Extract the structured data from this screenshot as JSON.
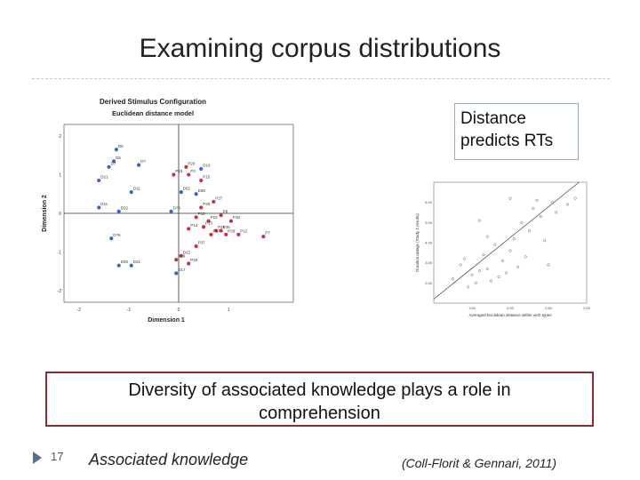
{
  "slide": {
    "title": "Examining corpus distributions",
    "callout_line1": "Distance",
    "callout_line2": "predicts RTs",
    "diversity_line1": "Diversity of associated knowledge plays a role in",
    "diversity_line2": "comprehension",
    "slide_number": "17",
    "bottom_label": "Associated knowledge",
    "citation": "(Coll-Florit & Gennari, 2011)",
    "marker_color": "#5a6f8c",
    "box_border_color": "#8b2d2d"
  },
  "chart_data": [
    {
      "type": "scatter",
      "title": "Derived Stimulus Configuration",
      "subtitle": "Euclidean distance model",
      "xlabel": "Dimension 1",
      "ylabel": "Dimension 2",
      "xlim": [
        -2.3,
        2.3
      ],
      "ylim": [
        -2.3,
        2.3
      ],
      "xticks": [
        -2,
        -1,
        0,
        1
      ],
      "yticks": [
        -2,
        -1,
        0,
        1,
        2
      ],
      "grid": false,
      "series": [
        {
          "color": "#3a63c9",
          "points": [
            {
              "x": -1.25,
              "y": 1.65,
              "label": "D6"
            },
            {
              "x": -1.3,
              "y": 1.35,
              "label": "D5"
            },
            {
              "x": -1.4,
              "y": 1.2,
              "label": "D7"
            },
            {
              "x": -0.8,
              "y": 1.25,
              "label": "D?"
            },
            {
              "x": -1.6,
              "y": 0.85,
              "label": "D21"
            },
            {
              "x": -0.95,
              "y": 0.55,
              "label": "D11"
            },
            {
              "x": -1.6,
              "y": 0.15,
              "label": "D11"
            },
            {
              "x": -1.2,
              "y": 0.05,
              "label": "D32"
            },
            {
              "x": -1.35,
              "y": -0.65,
              "label": "D?6"
            },
            {
              "x": -1.2,
              "y": -1.35,
              "label": "D35"
            },
            {
              "x": -0.95,
              "y": -1.35,
              "label": "D31"
            },
            {
              "x": -0.15,
              "y": 0.05,
              "label": "D?6"
            },
            {
              "x": 0.45,
              "y": 1.15,
              "label": "D18"
            },
            {
              "x": 0.05,
              "y": 0.55,
              "label": "D52"
            },
            {
              "x": 0.35,
              "y": 0.5,
              "label": "D55"
            },
            {
              "x": -0.05,
              "y": -1.55,
              "label": "D17"
            }
          ]
        },
        {
          "color": "#c8323a",
          "points": [
            {
              "x": 0.15,
              "y": 1.2,
              "label": "P20"
            },
            {
              "x": -0.1,
              "y": 1.0,
              "label": "P15"
            },
            {
              "x": 0.2,
              "y": 1.0,
              "label": "P3"
            },
            {
              "x": 0.45,
              "y": 0.85,
              "label": "P15"
            },
            {
              "x": 0.7,
              "y": 0.3,
              "label": "P27"
            },
            {
              "x": 0.45,
              "y": 0.15,
              "label": "P25"
            },
            {
              "x": 0.85,
              "y": -0.05,
              "label": "P8"
            },
            {
              "x": 0.35,
              "y": -0.1,
              "label": "P18"
            },
            {
              "x": 0.6,
              "y": -0.2,
              "label": "P22"
            },
            {
              "x": 1.05,
              "y": -0.2,
              "label": "P16"
            },
            {
              "x": 0.5,
              "y": -0.35,
              "label": "P13"
            },
            {
              "x": 0.75,
              "y": -0.45,
              "label": "P21"
            },
            {
              "x": 0.85,
              "y": -0.45,
              "label": "P35"
            },
            {
              "x": 0.65,
              "y": -0.55,
              "label": "P17"
            },
            {
              "x": 0.95,
              "y": -0.55,
              "label": "P33"
            },
            {
              "x": 0.2,
              "y": -0.4,
              "label": "P14"
            },
            {
              "x": 1.2,
              "y": -0.55,
              "label": "P12"
            },
            {
              "x": 1.7,
              "y": -0.6,
              "label": "P7"
            },
            {
              "x": 0.35,
              "y": -0.85,
              "label": "P37"
            },
            {
              "x": 0.05,
              "y": -1.1,
              "label": "D22"
            },
            {
              "x": -0.05,
              "y": -1.2,
              "label": "P29"
            },
            {
              "x": 0.2,
              "y": -1.3,
              "label": "P26"
            }
          ]
        }
      ]
    },
    {
      "type": "scatter",
      "xlabel": "Averaged Euclidean distance within verb types",
      "ylabel": "Duration ratings (Study 1 results)",
      "xlim": [
        1.0,
        3.0
      ],
      "ylim": [
        1.0,
        7.0
      ],
      "xticks": [
        "1.50",
        "2.00",
        "2.50",
        "3.00"
      ],
      "yticks": [
        "2.00",
        "3.00",
        "4.00",
        "5.00",
        "6.00"
      ],
      "grid": false,
      "fit_line": {
        "x1": 1.0,
        "y1": 1.2,
        "x2": 2.9,
        "y2": 7.0
      },
      "points": [
        [
          1.25,
          2.2
        ],
        [
          1.35,
          2.9
        ],
        [
          1.4,
          3.2
        ],
        [
          1.5,
          2.4
        ],
        [
          1.55,
          2.0
        ],
        [
          1.6,
          2.6
        ],
        [
          1.65,
          3.4
        ],
        [
          1.7,
          2.7
        ],
        [
          1.75,
          2.1
        ],
        [
          1.8,
          3.9
        ],
        [
          1.85,
          2.3
        ],
        [
          1.9,
          3.1
        ],
        [
          1.95,
          2.5
        ],
        [
          2.0,
          3.6
        ],
        [
          2.05,
          4.2
        ],
        [
          2.1,
          2.8
        ],
        [
          2.15,
          5.0
        ],
        [
          2.2,
          3.3
        ],
        [
          2.25,
          4.6
        ],
        [
          2.3,
          5.7
        ],
        [
          2.35,
          6.1
        ],
        [
          2.4,
          5.3
        ],
        [
          2.45,
          4.1
        ],
        [
          2.5,
          2.9
        ],
        [
          2.55,
          6.0
        ],
        [
          2.6,
          5.5
        ],
        [
          2.75,
          5.9
        ],
        [
          2.85,
          6.2
        ],
        [
          1.45,
          1.8
        ],
        [
          1.7,
          4.3
        ],
        [
          2.0,
          6.2
        ],
        [
          1.6,
          5.1
        ]
      ]
    }
  ]
}
